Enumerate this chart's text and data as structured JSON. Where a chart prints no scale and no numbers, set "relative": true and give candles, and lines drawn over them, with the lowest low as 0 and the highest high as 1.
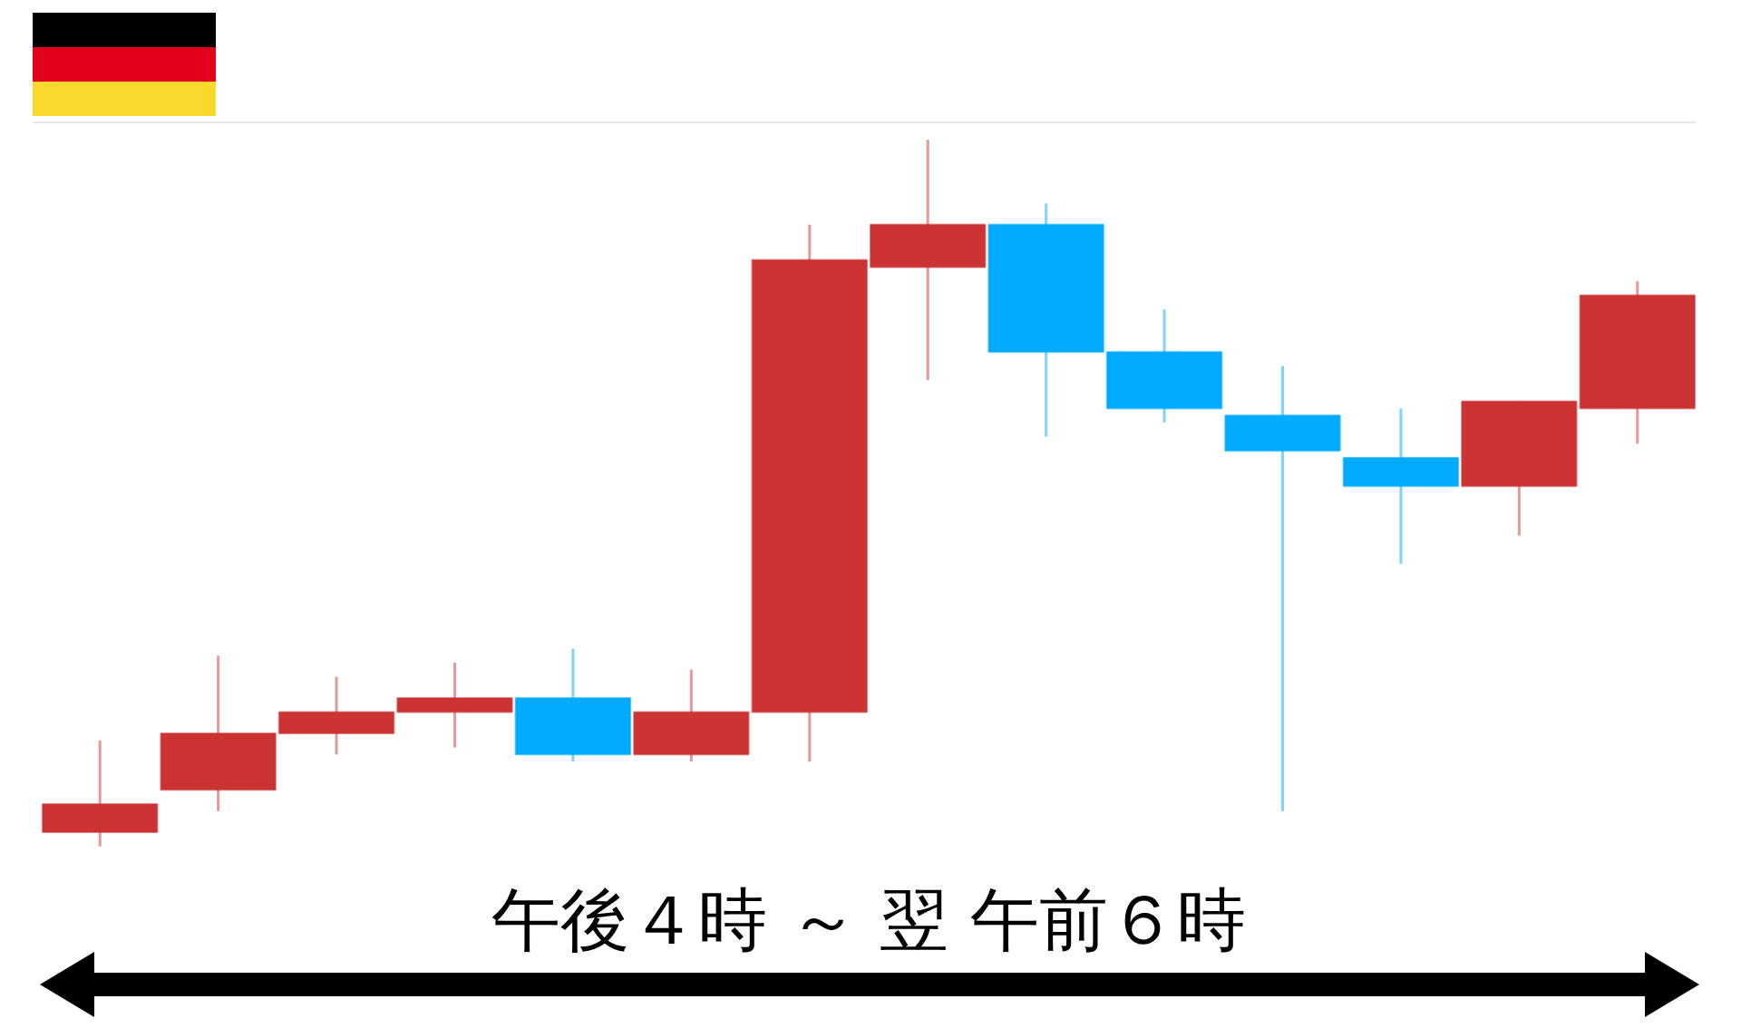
{
  "chart_data": {
    "type": "candlestick",
    "relative": true,
    "xlabel": "午後４時 ～ 翌 午前６時",
    "categories": [
      null,
      null,
      null,
      null,
      null,
      null,
      null,
      null,
      null,
      null,
      null,
      null,
      null,
      null
    ],
    "ohlc": [
      [
        0.02,
        0.15,
        0,
        0.06
      ],
      [
        0.08,
        0.27,
        0.05,
        0.16
      ],
      [
        0.16,
        0.24,
        0.13,
        0.19
      ],
      [
        0.19,
        0.26,
        0.14,
        0.21
      ],
      [
        0.21,
        0.28,
        0.12,
        0.13
      ],
      [
        0.13,
        0.25,
        0.12,
        0.19
      ],
      [
        0.19,
        0.88,
        0.12,
        0.83
      ],
      [
        0.82,
        1,
        0.66,
        0.88
      ],
      [
        0.88,
        0.91,
        0.58,
        0.7
      ],
      [
        0.7,
        0.76,
        0.6,
        0.62
      ],
      [
        0.61,
        0.68,
        0.05,
        0.56
      ],
      [
        0.55,
        0.62,
        0.4,
        0.51
      ],
      [
        0.51,
        0.63,
        0.44,
        0.63
      ],
      [
        0.62,
        0.8,
        0.57,
        0.78
      ]
    ],
    "colors": [
      "#cc3333",
      "#cc3333",
      "#cc3333",
      "#cc3333",
      "#00aaff",
      "#cc3333",
      "#cc3333",
      "#cc3333",
      "#00aaff",
      "#00aaff",
      "#00aaff",
      "#00aaff",
      "#cc3333",
      "#cc3333"
    ]
  }
}
